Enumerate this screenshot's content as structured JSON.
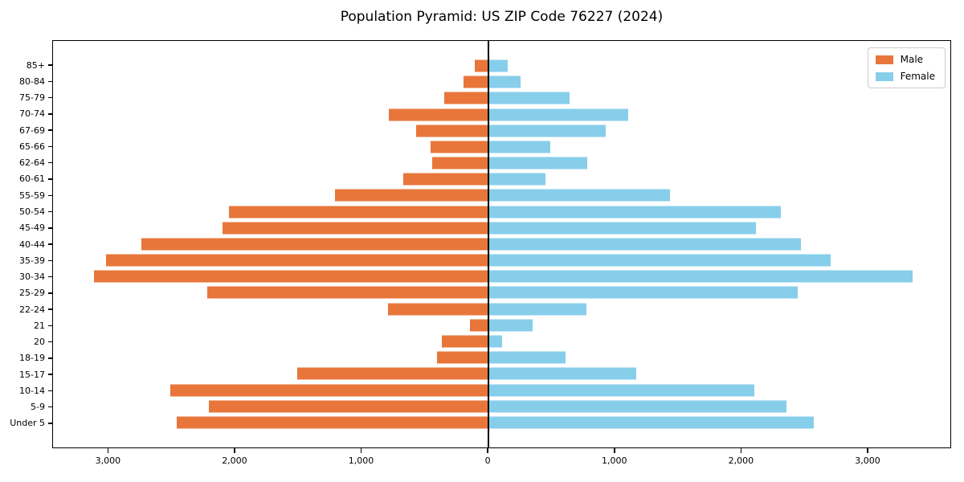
{
  "title": "Population Pyramid: US ZIP Code 76227 (2024)",
  "legend": {
    "male_label": "Male",
    "female_label": "Female"
  },
  "colors": {
    "male": "#e8763b",
    "female": "#87ceeb",
    "axis": "#000000",
    "legend_border": "#cccccc"
  },
  "chart_data": {
    "type": "bar",
    "subtype": "population-pyramid",
    "orientation": "horizontal",
    "title": "Population Pyramid: US ZIP Code 76227 (2024)",
    "xlabel": "",
    "ylabel": "",
    "grid": false,
    "legend_position": "upper right",
    "categories_top_to_bottom": [
      "85+",
      "80-84",
      "75-79",
      "70-74",
      "67-69",
      "65-66",
      "62-64",
      "60-61",
      "55-59",
      "50-54",
      "45-49",
      "40-44",
      "35-39",
      "30-34",
      "25-29",
      "22-24",
      "21",
      "20",
      "18-19",
      "15-17",
      "10-14",
      "5-9",
      "Under 5"
    ],
    "series": [
      {
        "name": "Male",
        "side": "left",
        "color": "#e8763b",
        "values": [
          110,
          200,
          350,
          785,
          575,
          455,
          445,
          675,
          1210,
          2050,
          2100,
          2745,
          3020,
          3115,
          2220,
          795,
          150,
          370,
          405,
          1510,
          2515,
          2210,
          2465
        ]
      },
      {
        "name": "Female",
        "side": "right",
        "color": "#87ceeb",
        "values": [
          150,
          250,
          640,
          1100,
          925,
          490,
          780,
          450,
          1430,
          2310,
          2115,
          2470,
          2705,
          3350,
          2440,
          770,
          350,
          105,
          605,
          1165,
          2100,
          2355,
          2570
        ]
      }
    ],
    "x_axis": {
      "range": [
        -3440,
        3660
      ],
      "tick_values": [
        -3000,
        -2000,
        -1000,
        0,
        1000,
        2000,
        3000
      ],
      "tick_labels": [
        "3,000",
        "2,000",
        "1,000",
        "0",
        "1,000",
        "2,000",
        "3,000"
      ]
    }
  }
}
